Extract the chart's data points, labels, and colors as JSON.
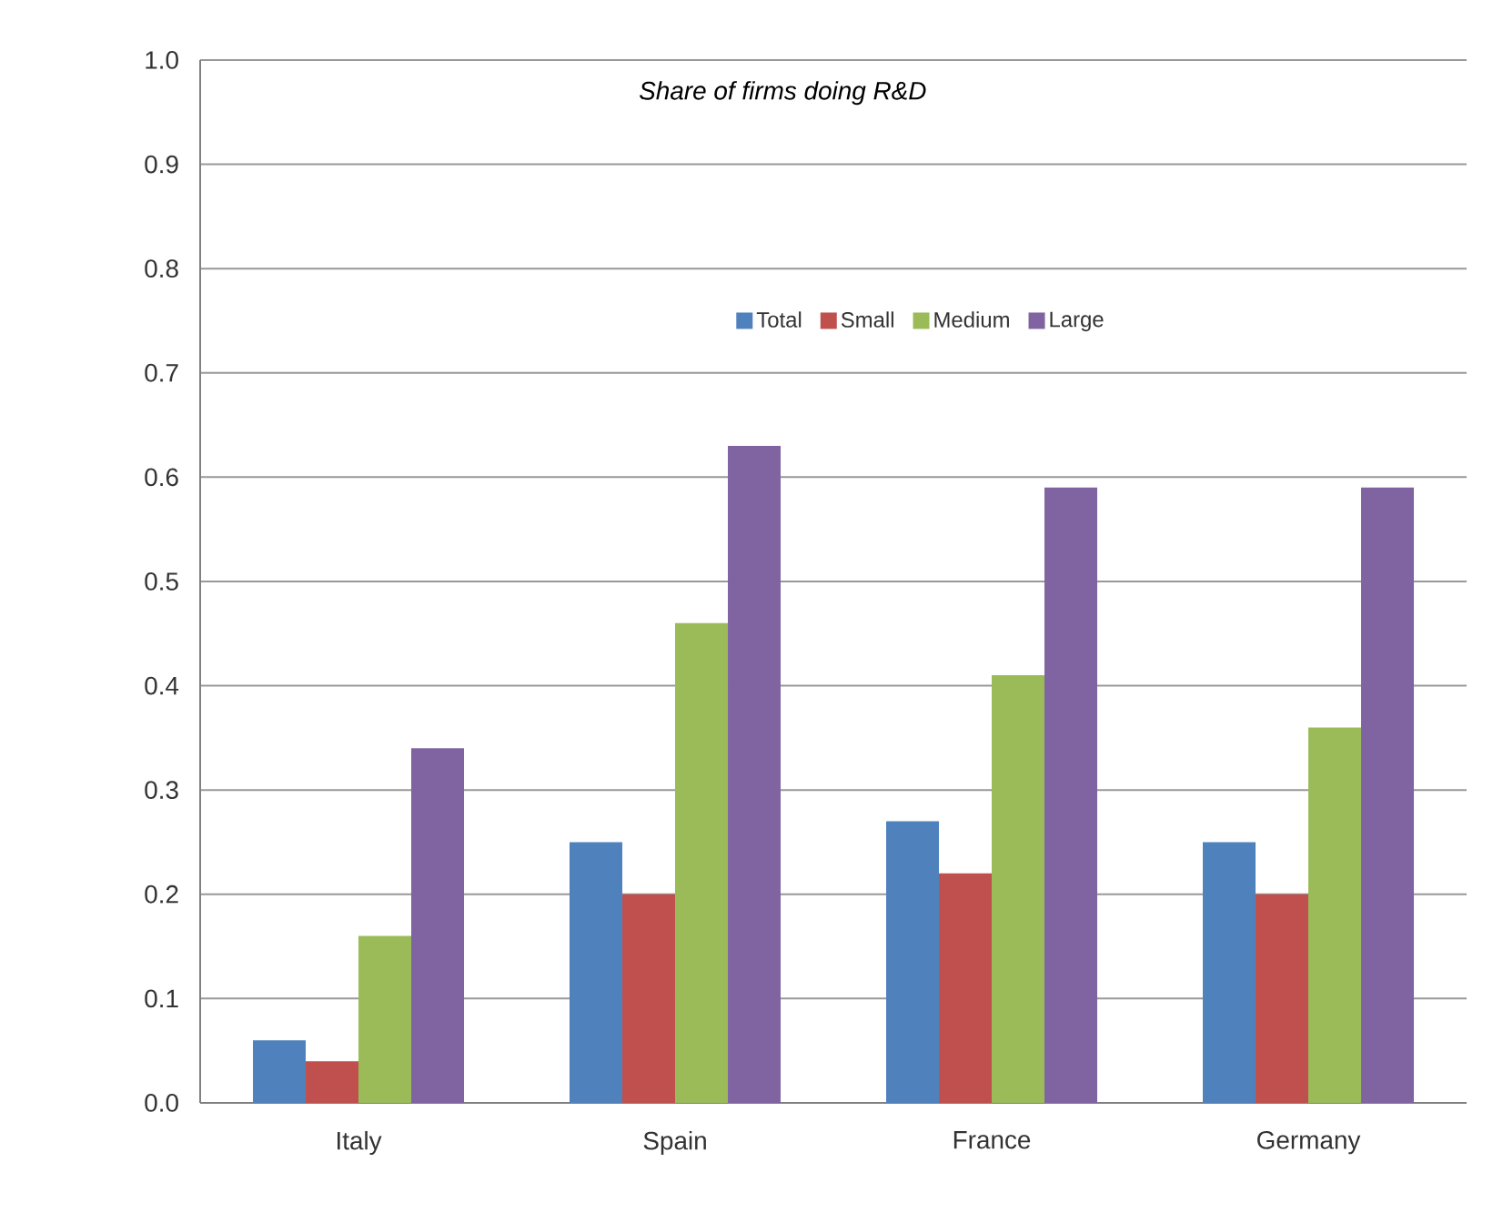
{
  "chart_data": {
    "type": "bar",
    "title": "*Share of firms doing R&D*",
    "categories": [
      "Italy",
      "Spain",
      "France",
      "Germany"
    ],
    "series": [
      {
        "name": "Total",
        "color": "#4f81bd",
        "values": [
          0.06,
          0.25,
          0.27,
          0.25
        ]
      },
      {
        "name": "Small",
        "color": "#c0504d",
        "values": [
          0.04,
          0.2,
          0.22,
          0.2
        ]
      },
      {
        "name": "Medium",
        "color": "#9bbb59",
        "values": [
          0.16,
          0.46,
          0.41,
          0.36
        ]
      },
      {
        "name": "Large",
        "color": "#8064a2",
        "values": [
          0.34,
          0.63,
          0.59,
          0.59
        ]
      }
    ],
    "ylim": [
      0,
      1
    ],
    "yticks": [
      {
        "value": 0,
        "label": "0.0"
      },
      {
        "value": 0.1,
        "label": "0.1"
      },
      {
        "value": 0.2,
        "label": "0.2"
      },
      {
        "value": 0.3,
        "label": "0.3"
      },
      {
        "value": 0.4,
        "label": "0.4"
      },
      {
        "value": 0.5,
        "label": "0.5"
      },
      {
        "value": 0.6,
        "label": "0.6"
      },
      {
        "value": 0.7,
        "label": "0.7"
      },
      {
        "value": 0.8,
        "label": "0.8"
      },
      {
        "value": 0.9,
        "label": "0.9"
      },
      {
        "value": 1,
        "label": "1.0"
      }
    ],
    "grid": "y",
    "legend": "top"
  }
}
